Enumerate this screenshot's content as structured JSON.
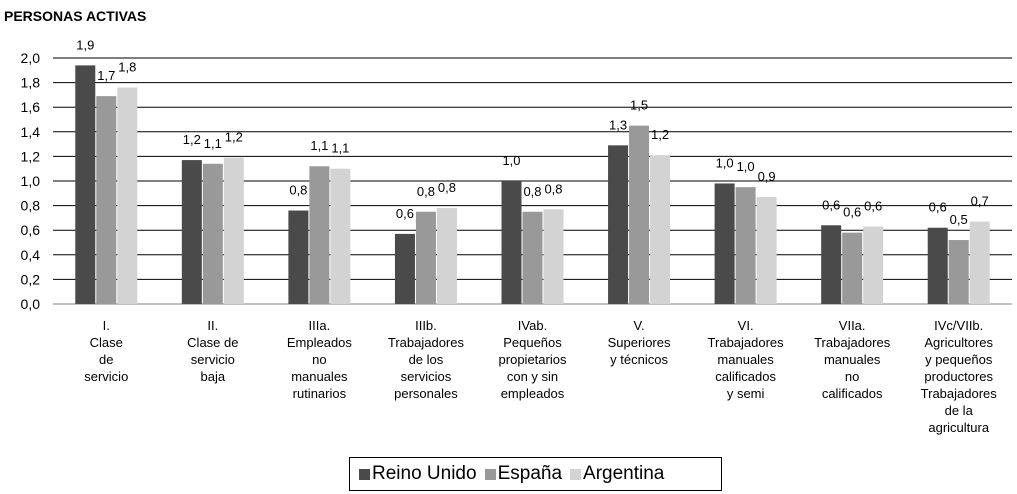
{
  "chart_data": {
    "type": "bar",
    "title": "PERSONAS ACTIVAS",
    "xlabel": "",
    "ylabel": "",
    "ylim": [
      0,
      2.0
    ],
    "yticks": [
      "0,0",
      "0,2",
      "0,4",
      "0,6",
      "0,8",
      "1,0",
      "1,2",
      "1,4",
      "1,6",
      "1,8",
      "2,0"
    ],
    "grid": true,
    "legend_position": "bottom",
    "categories": [
      [
        "I.",
        "Clase",
        "de",
        "servicio"
      ],
      [
        "II.",
        "Clase de",
        "servicio",
        "baja"
      ],
      [
        "IIIa.",
        "Empleados",
        "no",
        "manuales",
        "rutinarios"
      ],
      [
        "IIIb.",
        "Trabajadores",
        "de los",
        "servicios",
        "personales"
      ],
      [
        "IVab.",
        "Pequeños",
        "propietarios",
        "con y sin",
        "empleados"
      ],
      [
        "V.",
        "Superiores",
        "y técnicos"
      ],
      [
        "VI.",
        "Trabajadores",
        "manuales",
        "calificados",
        "y semi"
      ],
      [
        "VIIa.",
        "Trabajadores",
        "manuales",
        "no",
        "calificados"
      ],
      [
        "IVc/VIIb.",
        "Agricultores",
        "y pequeños",
        "productores",
        "Trabajadores",
        "de la",
        "agricultura"
      ]
    ],
    "series": [
      {
        "name": "Reino Unido",
        "color": "#4a4a4a",
        "values": [
          1.94,
          1.17,
          0.76,
          0.57,
          1.0,
          1.29,
          0.98,
          0.64,
          0.62
        ],
        "labels": [
          "1,9",
          "1,2",
          "0,8",
          "0,6",
          "1,0",
          "1,3",
          "1,0",
          "0,6",
          "0,6"
        ]
      },
      {
        "name": "España",
        "color": "#999999",
        "values": [
          1.69,
          1.14,
          1.12,
          0.75,
          0.75,
          1.45,
          0.95,
          0.58,
          0.52
        ],
        "labels": [
          "1,7",
          "1,1",
          "1,1",
          "0,8",
          "0,8",
          "1,5",
          "1,0",
          "0,6",
          "0,5"
        ]
      },
      {
        "name": "Argentina",
        "color": "#d3d3d3",
        "values": [
          1.76,
          1.19,
          1.1,
          0.78,
          0.77,
          1.21,
          0.87,
          0.63,
          0.67
        ],
        "labels": [
          "1,8",
          "1,2",
          "1,1",
          "0,8",
          "0,8",
          "1,2",
          "0,9",
          "0,6",
          "0,7"
        ]
      }
    ]
  }
}
